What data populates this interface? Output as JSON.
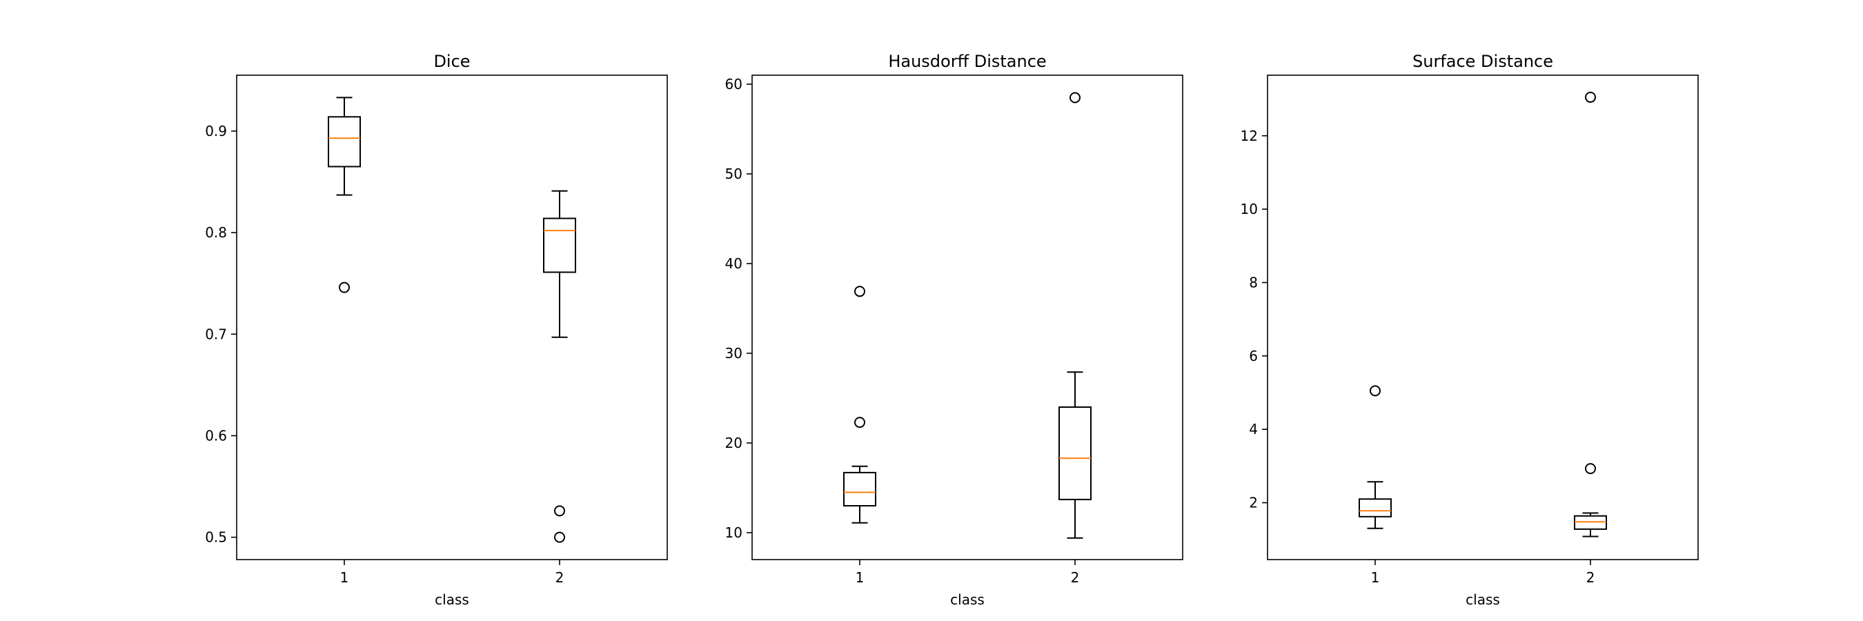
{
  "colors": {
    "box": "#000000",
    "median": "#ff7f0e",
    "background": "#ffffff"
  },
  "chart_data": [
    {
      "type": "box",
      "title": "Dice",
      "xlabel": "class",
      "ylabel": "",
      "categories": [
        "1",
        "2"
      ],
      "ylim": [
        0.478,
        0.955
      ],
      "yticks": [
        0.5,
        0.6,
        0.7,
        0.8,
        0.9
      ],
      "yticklabels": [
        "0.5",
        "0.6",
        "0.7",
        "0.8",
        "0.9"
      ],
      "boxes": [
        {
          "category": "1",
          "whisker_low": 0.837,
          "q1": 0.865,
          "median": 0.893,
          "q3": 0.914,
          "whisker_high": 0.933,
          "outliers": [
            0.746
          ]
        },
        {
          "category": "2",
          "whisker_low": 0.697,
          "q1": 0.761,
          "median": 0.802,
          "q3": 0.814,
          "whisker_high": 0.841,
          "outliers": [
            0.526,
            0.5
          ]
        }
      ]
    },
    {
      "type": "box",
      "title": "Hausdorff Distance",
      "xlabel": "class",
      "ylabel": "",
      "categories": [
        "1",
        "2"
      ],
      "ylim": [
        7.0,
        61.0
      ],
      "yticks": [
        10,
        20,
        30,
        40,
        50,
        60
      ],
      "yticklabels": [
        "10",
        "20",
        "30",
        "40",
        "50",
        "60"
      ],
      "boxes": [
        {
          "category": "1",
          "whisker_low": 11.1,
          "q1": 13.0,
          "median": 14.5,
          "q3": 16.7,
          "whisker_high": 17.4,
          "outliers": [
            22.3,
            36.9
          ]
        },
        {
          "category": "2",
          "whisker_low": 9.4,
          "q1": 13.7,
          "median": 18.3,
          "q3": 24.0,
          "whisker_high": 27.9,
          "outliers": [
            58.5
          ]
        }
      ]
    },
    {
      "type": "box",
      "title": "Surface Distance",
      "xlabel": "class",
      "ylabel": "",
      "categories": [
        "1",
        "2"
      ],
      "ylim": [
        0.45,
        13.65
      ],
      "yticks": [
        2,
        4,
        6,
        8,
        10,
        12
      ],
      "yticklabels": [
        "2",
        "4",
        "6",
        "8",
        "10",
        "12"
      ],
      "boxes": [
        {
          "category": "1",
          "whisker_low": 1.3,
          "q1": 1.62,
          "median": 1.78,
          "q3": 2.1,
          "whisker_high": 2.57,
          "outliers": [
            5.05
          ]
        },
        {
          "category": "2",
          "whisker_low": 1.08,
          "q1": 1.28,
          "median": 1.48,
          "q3": 1.64,
          "whisker_high": 1.72,
          "outliers": [
            2.93,
            13.05
          ]
        }
      ]
    }
  ]
}
